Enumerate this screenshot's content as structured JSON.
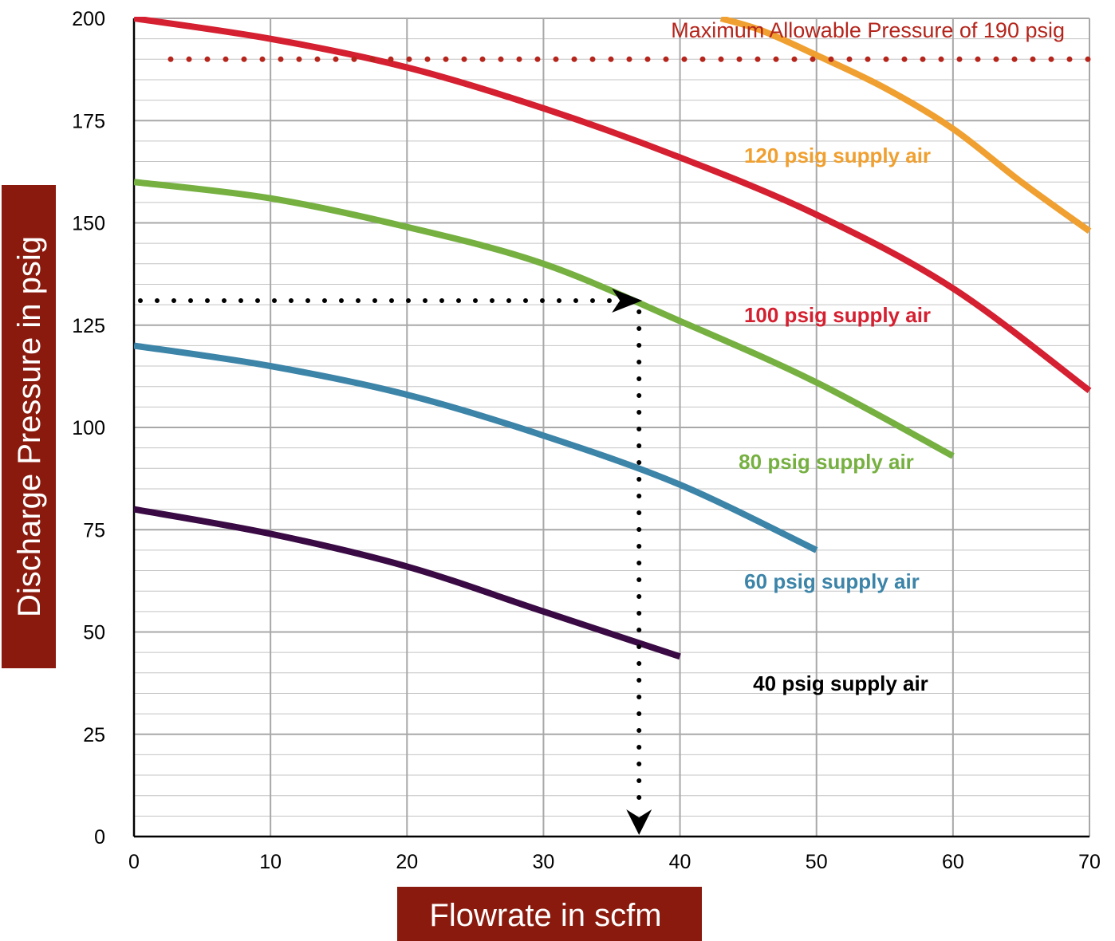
{
  "chart_data": {
    "type": "line",
    "xlabel": "Flowrate in scfm",
    "ylabel": "Discharge Pressure in psig",
    "xlim": [
      0,
      70
    ],
    "ylim": [
      0,
      200
    ],
    "x_ticks": [
      "0",
      "10",
      "20",
      "30",
      "40",
      "50",
      "60",
      "70"
    ],
    "y_ticks": [
      "0",
      "25",
      "50",
      "75",
      "100",
      "125",
      "150",
      "175",
      "200"
    ],
    "grid": true,
    "series": [
      {
        "name": "120 psig supply air",
        "color": "#F0A030",
        "x": [
          43,
          46,
          50,
          55,
          60,
          65,
          70
        ],
        "y": [
          200,
          197,
          191,
          183,
          173,
          160,
          148
        ]
      },
      {
        "name": "100 psig supply air",
        "color": "#D42030",
        "x": [
          0,
          10,
          20,
          30,
          40,
          50,
          60,
          70
        ],
        "y": [
          200,
          195,
          188,
          178,
          166,
          152,
          134,
          109
        ]
      },
      {
        "name": "80 psig supply air",
        "color": "#76B041",
        "x": [
          0,
          10,
          20,
          30,
          40,
          50,
          60
        ],
        "y": [
          160,
          156,
          149,
          140,
          126,
          111,
          93
        ]
      },
      {
        "name": "60 psig supply air",
        "color": "#3C84A8",
        "x": [
          0,
          10,
          20,
          30,
          40,
          50
        ],
        "y": [
          120,
          115,
          108,
          98,
          86,
          70
        ]
      },
      {
        "name": "40 psig supply air",
        "color": "#3A0A44",
        "x": [
          0,
          10,
          20,
          30,
          40
        ],
        "y": [
          80,
          74,
          66,
          55,
          44
        ]
      }
    ],
    "annotations": {
      "max_pressure": {
        "text": "Maximum Allowable Pressure of 190 psig",
        "y": 190,
        "color": "#B5251C"
      },
      "example_point": {
        "x": 37,
        "y": 131
      }
    },
    "label_box_color": "#8B1A0E"
  }
}
